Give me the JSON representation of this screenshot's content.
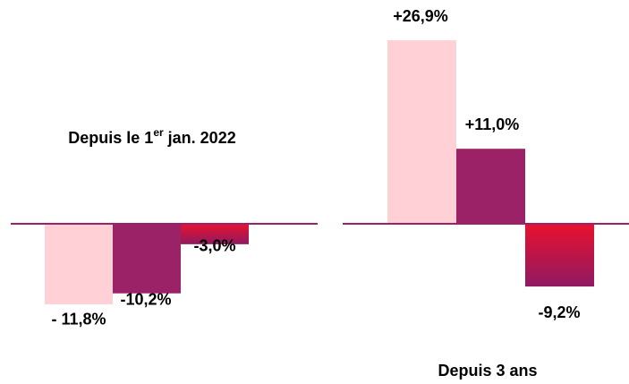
{
  "chart_data": [
    {
      "type": "bar",
      "title": [
        "Depuis le 1",
        "er",
        " jan. 2022"
      ],
      "values": [
        -11.8,
        -10.2,
        -3.0
      ],
      "value_labels": [
        "- 11,8%",
        "-10,2%",
        "-3,0%"
      ],
      "colors": [
        "#ffd0d5",
        "#9c2267",
        [
          "#e8112e",
          "#8f1a62"
        ]
      ]
    },
    {
      "type": "bar",
      "title": "Depuis 3 ans",
      "values": [
        26.9,
        11.0,
        -9.2
      ],
      "value_labels": [
        "+26,9%",
        "+11,0%",
        "-9,2%"
      ],
      "colors": [
        "#ffd0d5",
        "#9c2267",
        [
          "#e8112e",
          "#8f1a62"
        ]
      ]
    }
  ]
}
